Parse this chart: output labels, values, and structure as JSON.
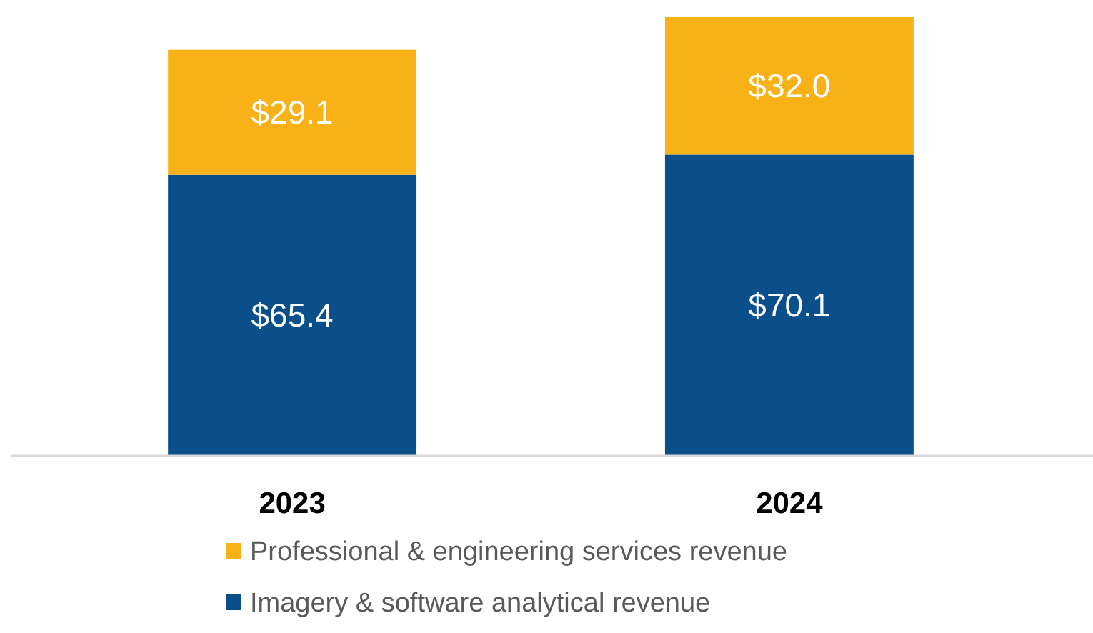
{
  "chart_data": {
    "type": "bar",
    "stacked": true,
    "legend": "bottom",
    "categories": [
      "2023",
      "2024"
    ],
    "series": [
      {
        "name": "Imagery & software analytical revenue",
        "color": "#0b4f8a",
        "values": [
          65.4,
          70.1
        ],
        "value_labels": [
          "$65.4",
          "$70.1"
        ]
      },
      {
        "name": "Professional & engineering services revenue",
        "color": "#f8b117",
        "values": [
          29.1,
          32.0
        ],
        "value_labels": [
          "$29.1",
          "$32.0"
        ]
      }
    ]
  }
}
